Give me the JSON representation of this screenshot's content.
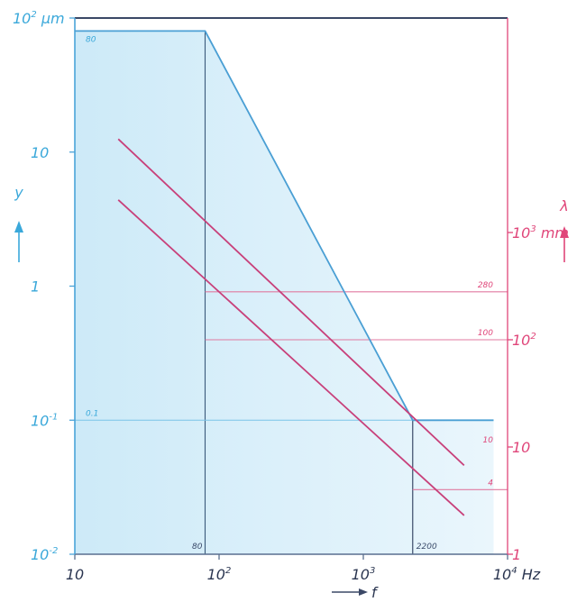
{
  "chart_data": {
    "type": "line",
    "x_scale": "log",
    "x_range": [
      10,
      10000
    ],
    "left_y_scale": "log",
    "left_y_range": [
      0.01,
      100
    ],
    "right_y_scale": "log",
    "right_y_range": [
      1,
      100000
    ],
    "x_ticks": [
      {
        "value": 10,
        "base": "10",
        "exp": ""
      },
      {
        "value": 100,
        "base": "10",
        "exp": "2"
      },
      {
        "value": 1000,
        "base": "10",
        "exp": "3"
      },
      {
        "value": 10000,
        "base": "10",
        "exp": "4"
      }
    ],
    "x_unit": "Hz",
    "x_label": "f",
    "left_ticks": [
      {
        "value": 100,
        "base": "10",
        "exp": "2"
      },
      {
        "value": 10,
        "base": "10",
        "exp": ""
      },
      {
        "value": 1,
        "base": "1",
        "exp": ""
      },
      {
        "value": 0.1,
        "base": "10",
        "exp": "-1"
      },
      {
        "value": 0.01,
        "base": "10",
        "exp": "-2"
      }
    ],
    "left_unit": "µm",
    "left_label": "y",
    "right_ticks": [
      {
        "value": 1000,
        "base": "10",
        "exp": "3"
      },
      {
        "value": 100,
        "base": "10",
        "exp": "2"
      },
      {
        "value": 10,
        "base": "10",
        "exp": ""
      },
      {
        "value": 1,
        "base": "1",
        "exp": ""
      }
    ],
    "right_unit": "mm",
    "right_label": "λ",
    "series": [
      {
        "axis": "left",
        "color": "#4a9fd4",
        "x": [
          10,
          80,
          2200,
          8000
        ],
        "y": [
          80,
          80,
          0.1,
          0.1
        ]
      },
      {
        "axis": "left",
        "color": "#c8407a",
        "x": [
          20,
          5000
        ],
        "y": [
          12.5,
          0.046
        ]
      },
      {
        "axis": "left",
        "color": "#c8407a",
        "x": [
          20,
          5000
        ],
        "y": [
          4.4,
          0.0195
        ]
      }
    ],
    "reference_lines": [
      {
        "type": "v",
        "x": 80,
        "y_from": 0.01,
        "y_to": 80,
        "color": "#3a5a7a"
      },
      {
        "type": "v",
        "x": 2200,
        "y_from": 0.01,
        "y_to": 0.1,
        "color": "#2a3a5a"
      },
      {
        "type": "h",
        "axis": "left",
        "y": 80,
        "x_from": 10,
        "x_to": 80,
        "color": "#4a9fd4"
      },
      {
        "type": "h",
        "axis": "left",
        "y": 0.1,
        "x_from": 10,
        "x_to": 8000,
        "color": "#7ac4e8"
      },
      {
        "type": "h",
        "axis": "right",
        "y": 280,
        "x_from": 80,
        "x_to": 10000,
        "color": "#e07aa0"
      },
      {
        "type": "h",
        "axis": "right",
        "y": 100,
        "x_from": 80,
        "x_to": 10000,
        "color": "#e07aa0"
      },
      {
        "type": "h",
        "axis": "right",
        "y": 4,
        "x_from": 2200,
        "x_to": 10000,
        "color": "#e07aa0"
      }
    ],
    "annotations": [
      {
        "text": "80",
        "x": 10,
        "axis": "left",
        "y": 80,
        "color": "blue"
      },
      {
        "text": "0.1",
        "x": 10,
        "axis": "left",
        "y": 0.1,
        "color": "blue"
      },
      {
        "text": "80",
        "x": 80,
        "axis": "left",
        "y": 0.01,
        "color": "dark"
      },
      {
        "text": "2200",
        "x": 2200,
        "axis": "left",
        "y": 0.01,
        "color": "dark"
      },
      {
        "text": "280",
        "x": 10000,
        "axis": "right",
        "y": 280,
        "color": "mag"
      },
      {
        "text": "100",
        "x": 10000,
        "axis": "right",
        "y": 100,
        "color": "mag"
      },
      {
        "text": "10",
        "x": 10000,
        "axis": "right",
        "y": 10,
        "color": "mag"
      },
      {
        "text": "4",
        "x": 10000,
        "axis": "right",
        "y": 4,
        "color": "mag"
      }
    ],
    "shaded_region": "area under the blue curve",
    "grid": false
  }
}
